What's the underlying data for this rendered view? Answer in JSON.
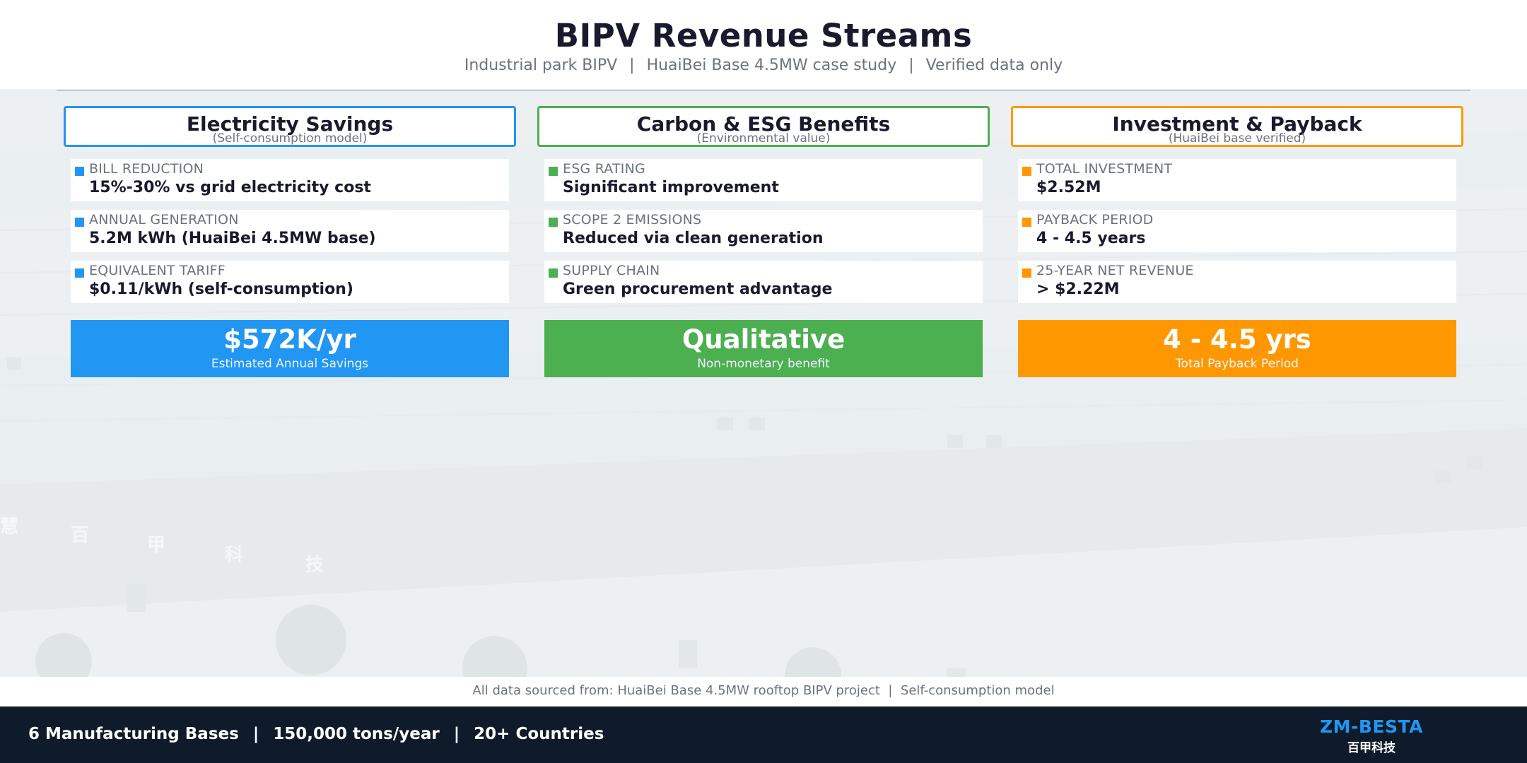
{
  "header": {
    "title": "BIPV Revenue Streams",
    "subtitle_parts": [
      "Industrial park BIPV",
      "HuaiBei Base 4.5MW case study",
      "Verified data only"
    ],
    "separator": "|"
  },
  "columns": [
    {
      "title": "Electricity Savings",
      "subtitle": "(Self-consumption model)",
      "accent_color": "#2196f3",
      "items": [
        {
          "label": "BILL REDUCTION",
          "value": "15%-30% vs grid electricity cost"
        },
        {
          "label": "ANNUAL GENERATION",
          "value": "5.2M kWh (HuaiBei 4.5MW base)"
        },
        {
          "label": "EQUIVALENT TARIFF",
          "value": "$0.11/kWh (self-consumption)"
        }
      ],
      "summary": {
        "value": "$572K/yr",
        "caption": "Estimated Annual Savings"
      }
    },
    {
      "title": "Carbon & ESG Benefits",
      "subtitle": "(Environmental value)",
      "accent_color": "#4caf50",
      "items": [
        {
          "label": "ESG RATING",
          "value": "Significant improvement"
        },
        {
          "label": "SCOPE 2 EMISSIONS",
          "value": "Reduced via clean generation"
        },
        {
          "label": "SUPPLY CHAIN",
          "value": "Green procurement advantage"
        }
      ],
      "summary": {
        "value": "Qualitative",
        "caption": "Non-monetary benefit"
      }
    },
    {
      "title": "Investment & Payback",
      "subtitle": "(HuaiBei base verified)",
      "accent_color": "#ff9800",
      "items": [
        {
          "label": "TOTAL INVESTMENT",
          "value": "$2.52M"
        },
        {
          "label": "PAYBACK PERIOD",
          "value": "4 - 4.5 years"
        },
        {
          "label": "25-YEAR NET REVENUE",
          "value": "> $2.22M"
        }
      ],
      "summary": {
        "value": "4 - 4.5 yrs",
        "caption": "Total Payback Period"
      }
    }
  ],
  "background": {
    "watermark_chars": [
      "慧",
      "百",
      "甲",
      "科",
      "技"
    ]
  },
  "source_note": {
    "text": "All data sourced from: HuaiBei Base 4.5MW rooftop BIPV project  |  Self-consumption model"
  },
  "footer": {
    "stats": [
      "6 Manufacturing Bases",
      "150,000 tons/year",
      "20+ Countries"
    ],
    "separator": "|",
    "brand_name": "ZM-BESTA",
    "brand_cn": "百甲科技",
    "brand_color": "#2196f3",
    "background_color": "#0f1b2a"
  }
}
